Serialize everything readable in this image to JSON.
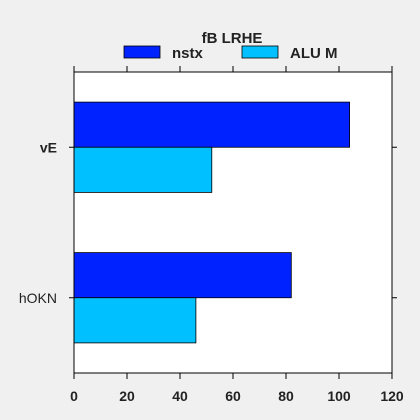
{
  "chart_data": {
    "type": "bar",
    "orientation": "horizontal",
    "legend": {
      "title": "fB  LRHE",
      "placement": "top-center",
      "columns": 2
    },
    "categories": [
      "vE",
      "hOKN"
    ],
    "series": [
      {
        "name": "nstx",
        "values": [
          104,
          82
        ],
        "color": "#0022ff"
      },
      {
        "name": "ALU M",
        "values": [
          52,
          46
        ],
        "color": "#00c0ff"
      }
    ],
    "xlim": [
      0,
      120
    ],
    "xticks": [
      0,
      20,
      40,
      60,
      80,
      100,
      120
    ],
    "xlabel": "",
    "ylabel": "",
    "title": "",
    "grid": false,
    "colors": {
      "plot_bg": "#ffffff",
      "figure_bg": "#f0f0f0",
      "axis": "#000000"
    }
  }
}
